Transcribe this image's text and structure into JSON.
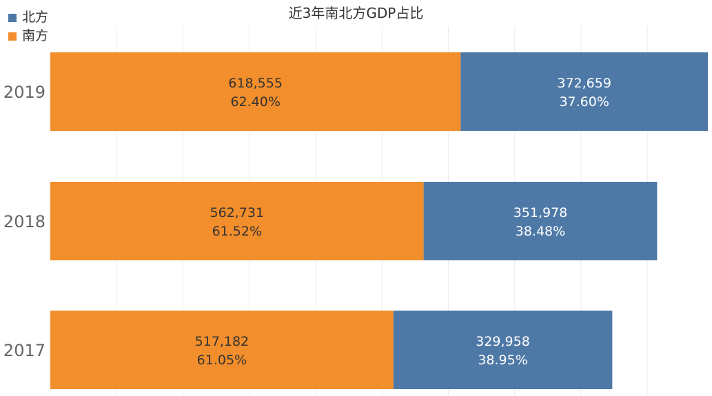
{
  "chart_data": {
    "type": "bar",
    "orientation": "horizontal",
    "stacked": true,
    "title": "近3年南北方GDP占比",
    "categories": [
      "2019",
      "2018",
      "2017"
    ],
    "series": [
      {
        "name": "南方",
        "color": "#F28E2B",
        "values": [
          618555,
          562731,
          517182
        ],
        "percent_labels": [
          "62.40%",
          "61.52%",
          "61.05%"
        ],
        "value_labels": [
          "618,555",
          "562,731",
          "517,182"
        ]
      },
      {
        "name": "北方",
        "color": "#4E79A7",
        "values": [
          372659,
          351978,
          329958
        ],
        "percent_labels": [
          "37.60%",
          "38.48%",
          "38.95%"
        ],
        "value_labels": [
          "372,659",
          "351,978",
          "329,958"
        ]
      }
    ],
    "xlim": [
      0,
      1000000
    ],
    "grid": true,
    "legend_position": "top-left",
    "legend": [
      {
        "label": "北方",
        "color": "#4E79A7"
      },
      {
        "label": "南方",
        "color": "#F28E2B"
      }
    ]
  }
}
